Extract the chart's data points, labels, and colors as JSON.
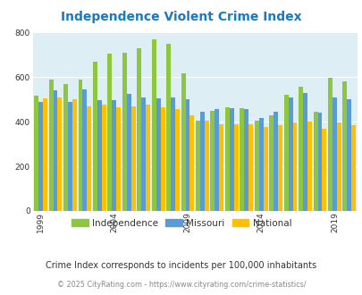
{
  "title": "Independence Violent Crime Index",
  "years": [
    1999,
    2000,
    2001,
    2002,
    2003,
    2004,
    2005,
    2006,
    2007,
    2008,
    2009,
    2010,
    2011,
    2012,
    2013,
    2014,
    2015,
    2016,
    2017,
    2018,
    2019,
    2020
  ],
  "independence": [
    515,
    590,
    570,
    590,
    670,
    705,
    710,
    730,
    770,
    750,
    615,
    405,
    450,
    465,
    460,
    405,
    430,
    520,
    555,
    445,
    595,
    580
  ],
  "missouri": [
    490,
    540,
    490,
    545,
    495,
    495,
    525,
    510,
    505,
    510,
    500,
    445,
    455,
    460,
    455,
    415,
    445,
    510,
    530,
    440,
    510,
    500
  ],
  "national": [
    505,
    510,
    500,
    470,
    475,
    465,
    470,
    475,
    465,
    455,
    430,
    405,
    390,
    390,
    390,
    375,
    385,
    395,
    400,
    370,
    395,
    385
  ],
  "independence_color": "#8dc63f",
  "missouri_color": "#5b9bd5",
  "national_color": "#ffc000",
  "bg_color": "#ffffff",
  "plot_bg_color": "#ddeef5",
  "ylim": [
    0,
    800
  ],
  "yticks": [
    0,
    200,
    400,
    600,
    800
  ],
  "xlabel_years": [
    1999,
    2004,
    2009,
    2014,
    2019
  ],
  "legend_labels": [
    "Independence",
    "Missouri",
    "National"
  ],
  "subtitle": "Crime Index corresponds to incidents per 100,000 inhabitants",
  "footer": "© 2025 CityRating.com - https://www.cityrating.com/crime-statistics/",
  "title_color": "#1a7abf",
  "subtitle_color": "#333333",
  "footer_color": "#888888",
  "title_fontsize": 10,
  "legend_text_color": "#333333"
}
